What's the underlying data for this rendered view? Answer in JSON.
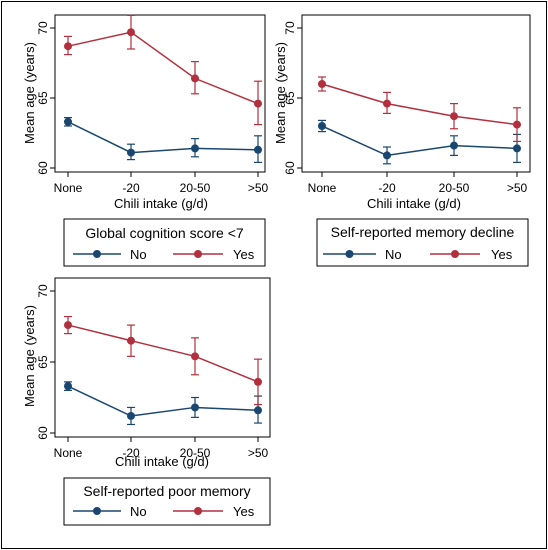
{
  "colors": {
    "no": "#1a476f",
    "yes": "#b2303e",
    "frame": "#000000"
  },
  "chart_data": [
    {
      "type": "line",
      "xlabel": "Chili intake (g/d)",
      "ylabel": "Mean age (years)",
      "categories": [
        "None",
        "-20",
        "20-50",
        ">50"
      ],
      "ylim": [
        60,
        70
      ],
      "yticks": [
        60,
        65,
        70
      ],
      "grid": false,
      "legend": {
        "title": "Global cognition score <7",
        "placement": "below"
      },
      "series": [
        {
          "name": "No",
          "values": [
            63.3,
            61.1,
            61.4,
            61.3
          ],
          "lower": [
            63.0,
            60.6,
            60.8,
            60.4
          ],
          "upper": [
            63.6,
            61.7,
            62.1,
            62.3
          ]
        },
        {
          "name": "Yes",
          "values": [
            68.7,
            69.7,
            66.4,
            64.6
          ],
          "lower": [
            68.1,
            68.5,
            65.3,
            63.1
          ],
          "upper": [
            69.4,
            70.9,
            67.6,
            66.2
          ]
        }
      ]
    },
    {
      "type": "line",
      "xlabel": "Chili intake (g/d)",
      "ylabel": "Mean age (years)",
      "categories": [
        "None",
        "-20",
        "20-50",
        ">50"
      ],
      "ylim": [
        60,
        70
      ],
      "yticks": [
        60,
        65,
        70
      ],
      "grid": false,
      "legend": {
        "title": "Self-reported memory decline",
        "placement": "below"
      },
      "series": [
        {
          "name": "No",
          "values": [
            63.0,
            60.9,
            61.6,
            61.4
          ],
          "lower": [
            62.6,
            60.3,
            60.9,
            60.4
          ],
          "upper": [
            63.4,
            61.5,
            62.3,
            62.4
          ]
        },
        {
          "name": "Yes",
          "values": [
            66.0,
            64.6,
            63.7,
            63.1
          ],
          "lower": [
            65.5,
            63.9,
            62.8,
            61.9
          ],
          "upper": [
            66.5,
            65.4,
            64.6,
            64.3
          ]
        }
      ]
    },
    {
      "type": "line",
      "xlabel": "Chili intake (g/d)",
      "ylabel": "Mean age (years)",
      "categories": [
        "None",
        "-20",
        "20-50",
        ">50"
      ],
      "ylim": [
        60,
        70
      ],
      "yticks": [
        60,
        65,
        70
      ],
      "grid": false,
      "legend": {
        "title": "Self-reported poor memory",
        "placement": "below"
      },
      "series": [
        {
          "name": "No",
          "values": [
            63.3,
            61.2,
            61.8,
            61.6
          ],
          "lower": [
            63.0,
            60.6,
            61.1,
            60.7
          ],
          "upper": [
            63.6,
            61.8,
            62.5,
            62.6
          ]
        },
        {
          "name": "Yes",
          "values": [
            67.6,
            66.5,
            65.4,
            63.6
          ],
          "lower": [
            67.0,
            65.4,
            64.1,
            62.0
          ],
          "upper": [
            68.2,
            67.6,
            66.7,
            65.2
          ]
        }
      ]
    }
  ]
}
